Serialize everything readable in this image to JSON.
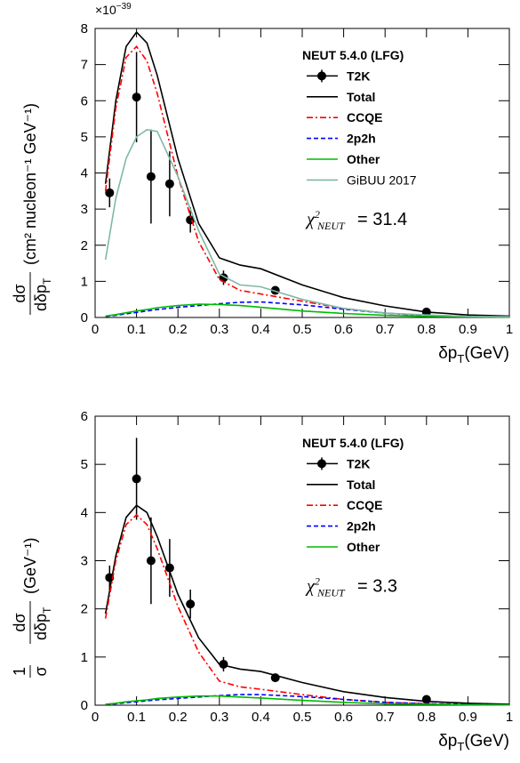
{
  "chart_data": [
    {
      "type": "line",
      "scale_label": {
        "base": "×10",
        "exponent": "−39"
      },
      "ylabel": {
        "numerator": "dσ",
        "denominator": "dδp",
        "denominator_sub": "T",
        "unit": "(cm² nucleon⁻¹ GeV⁻¹)"
      },
      "xlabel": {
        "main": "δp",
        "sub": "T",
        "unit": "(GeV)"
      },
      "legend_title": "NEUT 5.4.0 (LFG)",
      "annotation": {
        "symbol": "χ",
        "sup": "2",
        "sub": "NEUT",
        "text": "= 31.4"
      },
      "xlim": [
        0,
        1
      ],
      "xticks": [
        0,
        0.1,
        0.2,
        0.3,
        0.4,
        0.5,
        0.6,
        0.7,
        0.8,
        0.9,
        1
      ],
      "ylim": [
        0,
        8
      ],
      "yticks": [
        0,
        1,
        2,
        3,
        4,
        5,
        6,
        7,
        8
      ],
      "x": [
        0.025,
        0.05,
        0.075,
        0.1,
        0.125,
        0.15,
        0.2,
        0.25,
        0.3,
        0.35,
        0.4,
        0.5,
        0.6,
        0.7,
        0.8,
        0.9,
        1.0
      ],
      "series": [
        {
          "name": "T2K",
          "style": "points",
          "color": "#000000",
          "x": [
            0.035,
            0.1,
            0.135,
            0.18,
            0.23,
            0.31,
            0.435,
            0.8
          ],
          "values": [
            3.45,
            6.1,
            3.9,
            3.7,
            2.7,
            1.1,
            0.75,
            0.15
          ],
          "errors": [
            0.4,
            1.25,
            1.3,
            0.9,
            0.35,
            0.2,
            0.1,
            0.05
          ]
        },
        {
          "name": "Total",
          "style": "solid",
          "color": "#000000",
          "values": [
            3.7,
            6.0,
            7.5,
            7.9,
            7.6,
            6.7,
            4.4,
            2.6,
            1.65,
            1.45,
            1.35,
            0.9,
            0.55,
            0.32,
            0.15,
            0.07,
            0.04
          ]
        },
        {
          "name": "CCQE",
          "style": "dashdot",
          "color": "#ff0000",
          "values": [
            3.5,
            5.8,
            7.2,
            7.5,
            7.1,
            6.2,
            3.9,
            2.1,
            1.05,
            0.75,
            0.65,
            0.45,
            0.25,
            0.12,
            0.05,
            0.02,
            0.01
          ]
        },
        {
          "name": "2p2h",
          "style": "dashed",
          "color": "#0000ff",
          "values": [
            0.03,
            0.06,
            0.1,
            0.14,
            0.18,
            0.22,
            0.28,
            0.33,
            0.38,
            0.42,
            0.43,
            0.35,
            0.23,
            0.12,
            0.06,
            0.03,
            0.02
          ]
        },
        {
          "name": "Other",
          "style": "solid",
          "color": "#00bb00",
          "values": [
            0.04,
            0.08,
            0.13,
            0.18,
            0.22,
            0.27,
            0.33,
            0.37,
            0.36,
            0.33,
            0.28,
            0.18,
            0.11,
            0.06,
            0.03,
            0.02,
            0.01
          ]
        },
        {
          "name": "GiBUU 2017",
          "style": "solid",
          "color": "#7fb8a8",
          "values": [
            1.6,
            3.3,
            4.4,
            5.0,
            5.2,
            5.15,
            3.9,
            2.4,
            1.2,
            0.9,
            0.85,
            0.5,
            0.25,
            0.12,
            0.07,
            0.03,
            0.02
          ]
        }
      ]
    },
    {
      "type": "line",
      "ylabel": {
        "prefix_numerator": "1",
        "prefix_denominator": "σ",
        "numerator": "dσ",
        "denominator": "dδp",
        "denominator_sub": "T",
        "unit": "(GeV⁻¹)"
      },
      "xlabel": {
        "main": "δp",
        "sub": "T",
        "unit": "(GeV)"
      },
      "legend_title": "NEUT 5.4.0 (LFG)",
      "annotation": {
        "symbol": "χ",
        "sup": "2",
        "sub": "NEUT",
        "text": "= 3.3"
      },
      "xlim": [
        0,
        1
      ],
      "xticks": [
        0,
        0.1,
        0.2,
        0.3,
        0.4,
        0.5,
        0.6,
        0.7,
        0.8,
        0.9,
        1
      ],
      "ylim": [
        0,
        6
      ],
      "yticks": [
        0,
        1,
        2,
        3,
        4,
        5,
        6
      ],
      "x": [
        0.025,
        0.05,
        0.075,
        0.1,
        0.125,
        0.15,
        0.2,
        0.25,
        0.3,
        0.35,
        0.4,
        0.5,
        0.6,
        0.7,
        0.8,
        0.9,
        1.0
      ],
      "series": [
        {
          "name": "T2K",
          "style": "points",
          "color": "#000000",
          "x": [
            0.035,
            0.1,
            0.135,
            0.18,
            0.23,
            0.31,
            0.435,
            0.8
          ],
          "values": [
            2.65,
            4.7,
            3.0,
            2.85,
            2.1,
            0.85,
            0.57,
            0.12
          ],
          "errors": [
            0.25,
            0.85,
            0.9,
            0.6,
            0.3,
            0.15,
            0.06,
            0.04
          ]
        },
        {
          "name": "Total",
          "style": "solid",
          "color": "#000000",
          "values": [
            1.9,
            3.1,
            3.9,
            4.15,
            4.0,
            3.5,
            2.3,
            1.4,
            0.85,
            0.75,
            0.7,
            0.47,
            0.28,
            0.16,
            0.08,
            0.04,
            0.02
          ]
        },
        {
          "name": "CCQE",
          "style": "dashdot",
          "color": "#ff0000",
          "values": [
            1.8,
            3.0,
            3.75,
            3.95,
            3.75,
            3.25,
            2.05,
            1.1,
            0.5,
            0.38,
            0.33,
            0.22,
            0.12,
            0.06,
            0.03,
            0.01,
            0.005
          ]
        },
        {
          "name": "2p2h",
          "style": "dashed",
          "color": "#0000ff",
          "values": [
            0.02,
            0.03,
            0.05,
            0.07,
            0.09,
            0.11,
            0.14,
            0.17,
            0.2,
            0.22,
            0.22,
            0.18,
            0.12,
            0.06,
            0.03,
            0.02,
            0.01
          ]
        },
        {
          "name": "Other",
          "style": "solid",
          "color": "#00bb00",
          "values": [
            0.02,
            0.04,
            0.07,
            0.09,
            0.11,
            0.14,
            0.17,
            0.19,
            0.19,
            0.17,
            0.15,
            0.1,
            0.06,
            0.03,
            0.02,
            0.01,
            0.005
          ]
        }
      ]
    }
  ]
}
